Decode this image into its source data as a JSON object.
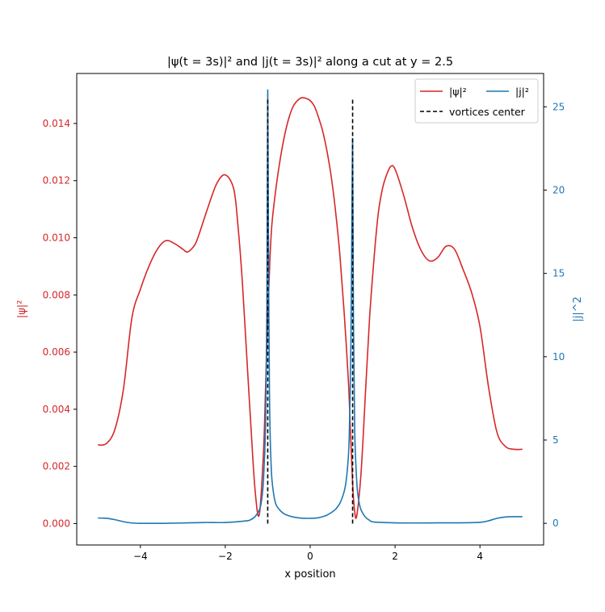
{
  "chart_data": {
    "type": "line",
    "title": "|ψ(t = 3s)|² and |j(t = 3s)|² along a cut at y = 2.5",
    "xlabel": "x position",
    "ylabel_left": "|ψ|²",
    "ylabel_right": "|j|^2",
    "xlim": [
      -5.5,
      5.5
    ],
    "ylim_left": [
      -0.00075,
      0.01575
    ],
    "ylim_right": [
      -1.3,
      27.0
    ],
    "xticks": [
      -4,
      -2,
      0,
      2,
      4
    ],
    "xtick_labels": [
      "−4",
      "−2",
      "0",
      "2",
      "4"
    ],
    "yticks_left": [
      0.0,
      0.002,
      0.004,
      0.006,
      0.008,
      0.01,
      0.012,
      0.014
    ],
    "ytick_labels_left": [
      "0.000",
      "0.002",
      "0.004",
      "0.006",
      "0.008",
      "0.010",
      "0.012",
      "0.014"
    ],
    "yticks_right": [
      0,
      5,
      10,
      15,
      20,
      25
    ],
    "ytick_labels_right": [
      "0",
      "5",
      "10",
      "15",
      "20",
      "25"
    ],
    "grid": false,
    "legend_position": "top-right",
    "colors": {
      "psi": "#d62728",
      "j": "#1f77b4",
      "vortex": "#000000",
      "axis": "#000000"
    },
    "series": [
      {
        "name": "|ψ|²",
        "axis": "left",
        "x": [
          -5.0,
          -4.8,
          -4.6,
          -4.4,
          -4.2,
          -4.0,
          -3.8,
          -3.6,
          -3.4,
          -3.2,
          -3.0,
          -2.9,
          -2.8,
          -2.7,
          -2.6,
          -2.4,
          -2.2,
          -2.0,
          -1.8,
          -1.7,
          -1.6,
          -1.5,
          -1.4,
          -1.3,
          -1.2,
          -1.1,
          -1.05,
          -1.0,
          -0.95,
          -0.9,
          -0.8,
          -0.7,
          -0.6,
          -0.5,
          -0.4,
          -0.3,
          -0.2,
          -0.1,
          0.0,
          0.1,
          0.2,
          0.3,
          0.4,
          0.5,
          0.6,
          0.7,
          0.8,
          0.9,
          0.95,
          1.0,
          1.05,
          1.1,
          1.2,
          1.3,
          1.4,
          1.5,
          1.6,
          1.7,
          1.8,
          1.9,
          2.0,
          2.2,
          2.4,
          2.6,
          2.8,
          3.0,
          3.2,
          3.4,
          3.6,
          3.8,
          4.0,
          4.2,
          4.4,
          4.6,
          4.8,
          5.0
        ],
        "values": [
          0.00275,
          0.0028,
          0.0033,
          0.0047,
          0.0072,
          0.0082,
          0.009,
          0.0096,
          0.0099,
          0.0098,
          0.0096,
          0.0095,
          0.0096,
          0.0098,
          0.0102,
          0.0111,
          0.0119,
          0.0122,
          0.0117,
          0.0104,
          0.0085,
          0.006,
          0.0035,
          0.0012,
          0.0003,
          0.0025,
          0.0048,
          0.0072,
          0.0092,
          0.0105,
          0.0118,
          0.0128,
          0.0136,
          0.0142,
          0.0146,
          0.0148,
          0.0149,
          0.01488,
          0.0148,
          0.0146,
          0.0142,
          0.0137,
          0.013,
          0.0121,
          0.0109,
          0.0094,
          0.0074,
          0.005,
          0.0032,
          0.0014,
          0.0004,
          0.0003,
          0.0018,
          0.0045,
          0.0072,
          0.0092,
          0.0108,
          0.0117,
          0.0122,
          0.0125,
          0.0124,
          0.0115,
          0.0104,
          0.0096,
          0.0092,
          0.0093,
          0.0097,
          0.0096,
          0.0089,
          0.0081,
          0.0069,
          0.0048,
          0.0032,
          0.0027,
          0.0026,
          0.0026
        ]
      },
      {
        "name": "|j|²",
        "axis": "right",
        "x": [
          -5.0,
          -4.8,
          -4.6,
          -4.4,
          -4.2,
          -4.0,
          -3.5,
          -3.0,
          -2.5,
          -2.0,
          -1.5,
          -1.4,
          -1.3,
          -1.2,
          -1.15,
          -1.1,
          -1.05,
          -1.02,
          -1.0,
          -0.98,
          -0.96,
          -0.94,
          -0.92,
          -0.9,
          -0.85,
          -0.8,
          -0.7,
          -0.6,
          -0.5,
          -0.4,
          -0.3,
          -0.2,
          -0.1,
          0.0,
          0.1,
          0.2,
          0.3,
          0.4,
          0.5,
          0.6,
          0.7,
          0.8,
          0.85,
          0.9,
          0.92,
          0.94,
          0.96,
          0.98,
          1.0,
          1.02,
          1.05,
          1.1,
          1.15,
          1.2,
          1.3,
          1.4,
          1.5,
          2.0,
          2.5,
          3.0,
          3.5,
          4.0,
          4.2,
          4.4,
          4.6,
          4.8,
          5.0
        ],
        "values": [
          0.32,
          0.3,
          0.22,
          0.1,
          0.02,
          0.0,
          0.0,
          0.02,
          0.05,
          0.05,
          0.15,
          0.22,
          0.4,
          0.8,
          1.3,
          2.6,
          6.0,
          13.0,
          26.0,
          15.0,
          8.0,
          5.0,
          3.5,
          2.6,
          1.6,
          1.1,
          0.75,
          0.55,
          0.45,
          0.38,
          0.34,
          0.31,
          0.3,
          0.3,
          0.31,
          0.34,
          0.4,
          0.5,
          0.65,
          0.85,
          1.2,
          1.9,
          2.6,
          4.0,
          5.2,
          7.5,
          11.0,
          17.0,
          23.0,
          12.0,
          5.5,
          2.4,
          1.3,
          0.8,
          0.38,
          0.18,
          0.08,
          0.03,
          0.02,
          0.03,
          0.03,
          0.06,
          0.15,
          0.3,
          0.38,
          0.4,
          0.4
        ]
      },
      {
        "name": "vortices center",
        "axis": "left",
        "style": "dashed",
        "positions": [
          -1.0,
          1.0
        ],
        "y_range": [
          0.0,
          0.01488
        ]
      }
    ],
    "legend": [
      "|ψ|²",
      "|j|²",
      "vortices center"
    ]
  }
}
